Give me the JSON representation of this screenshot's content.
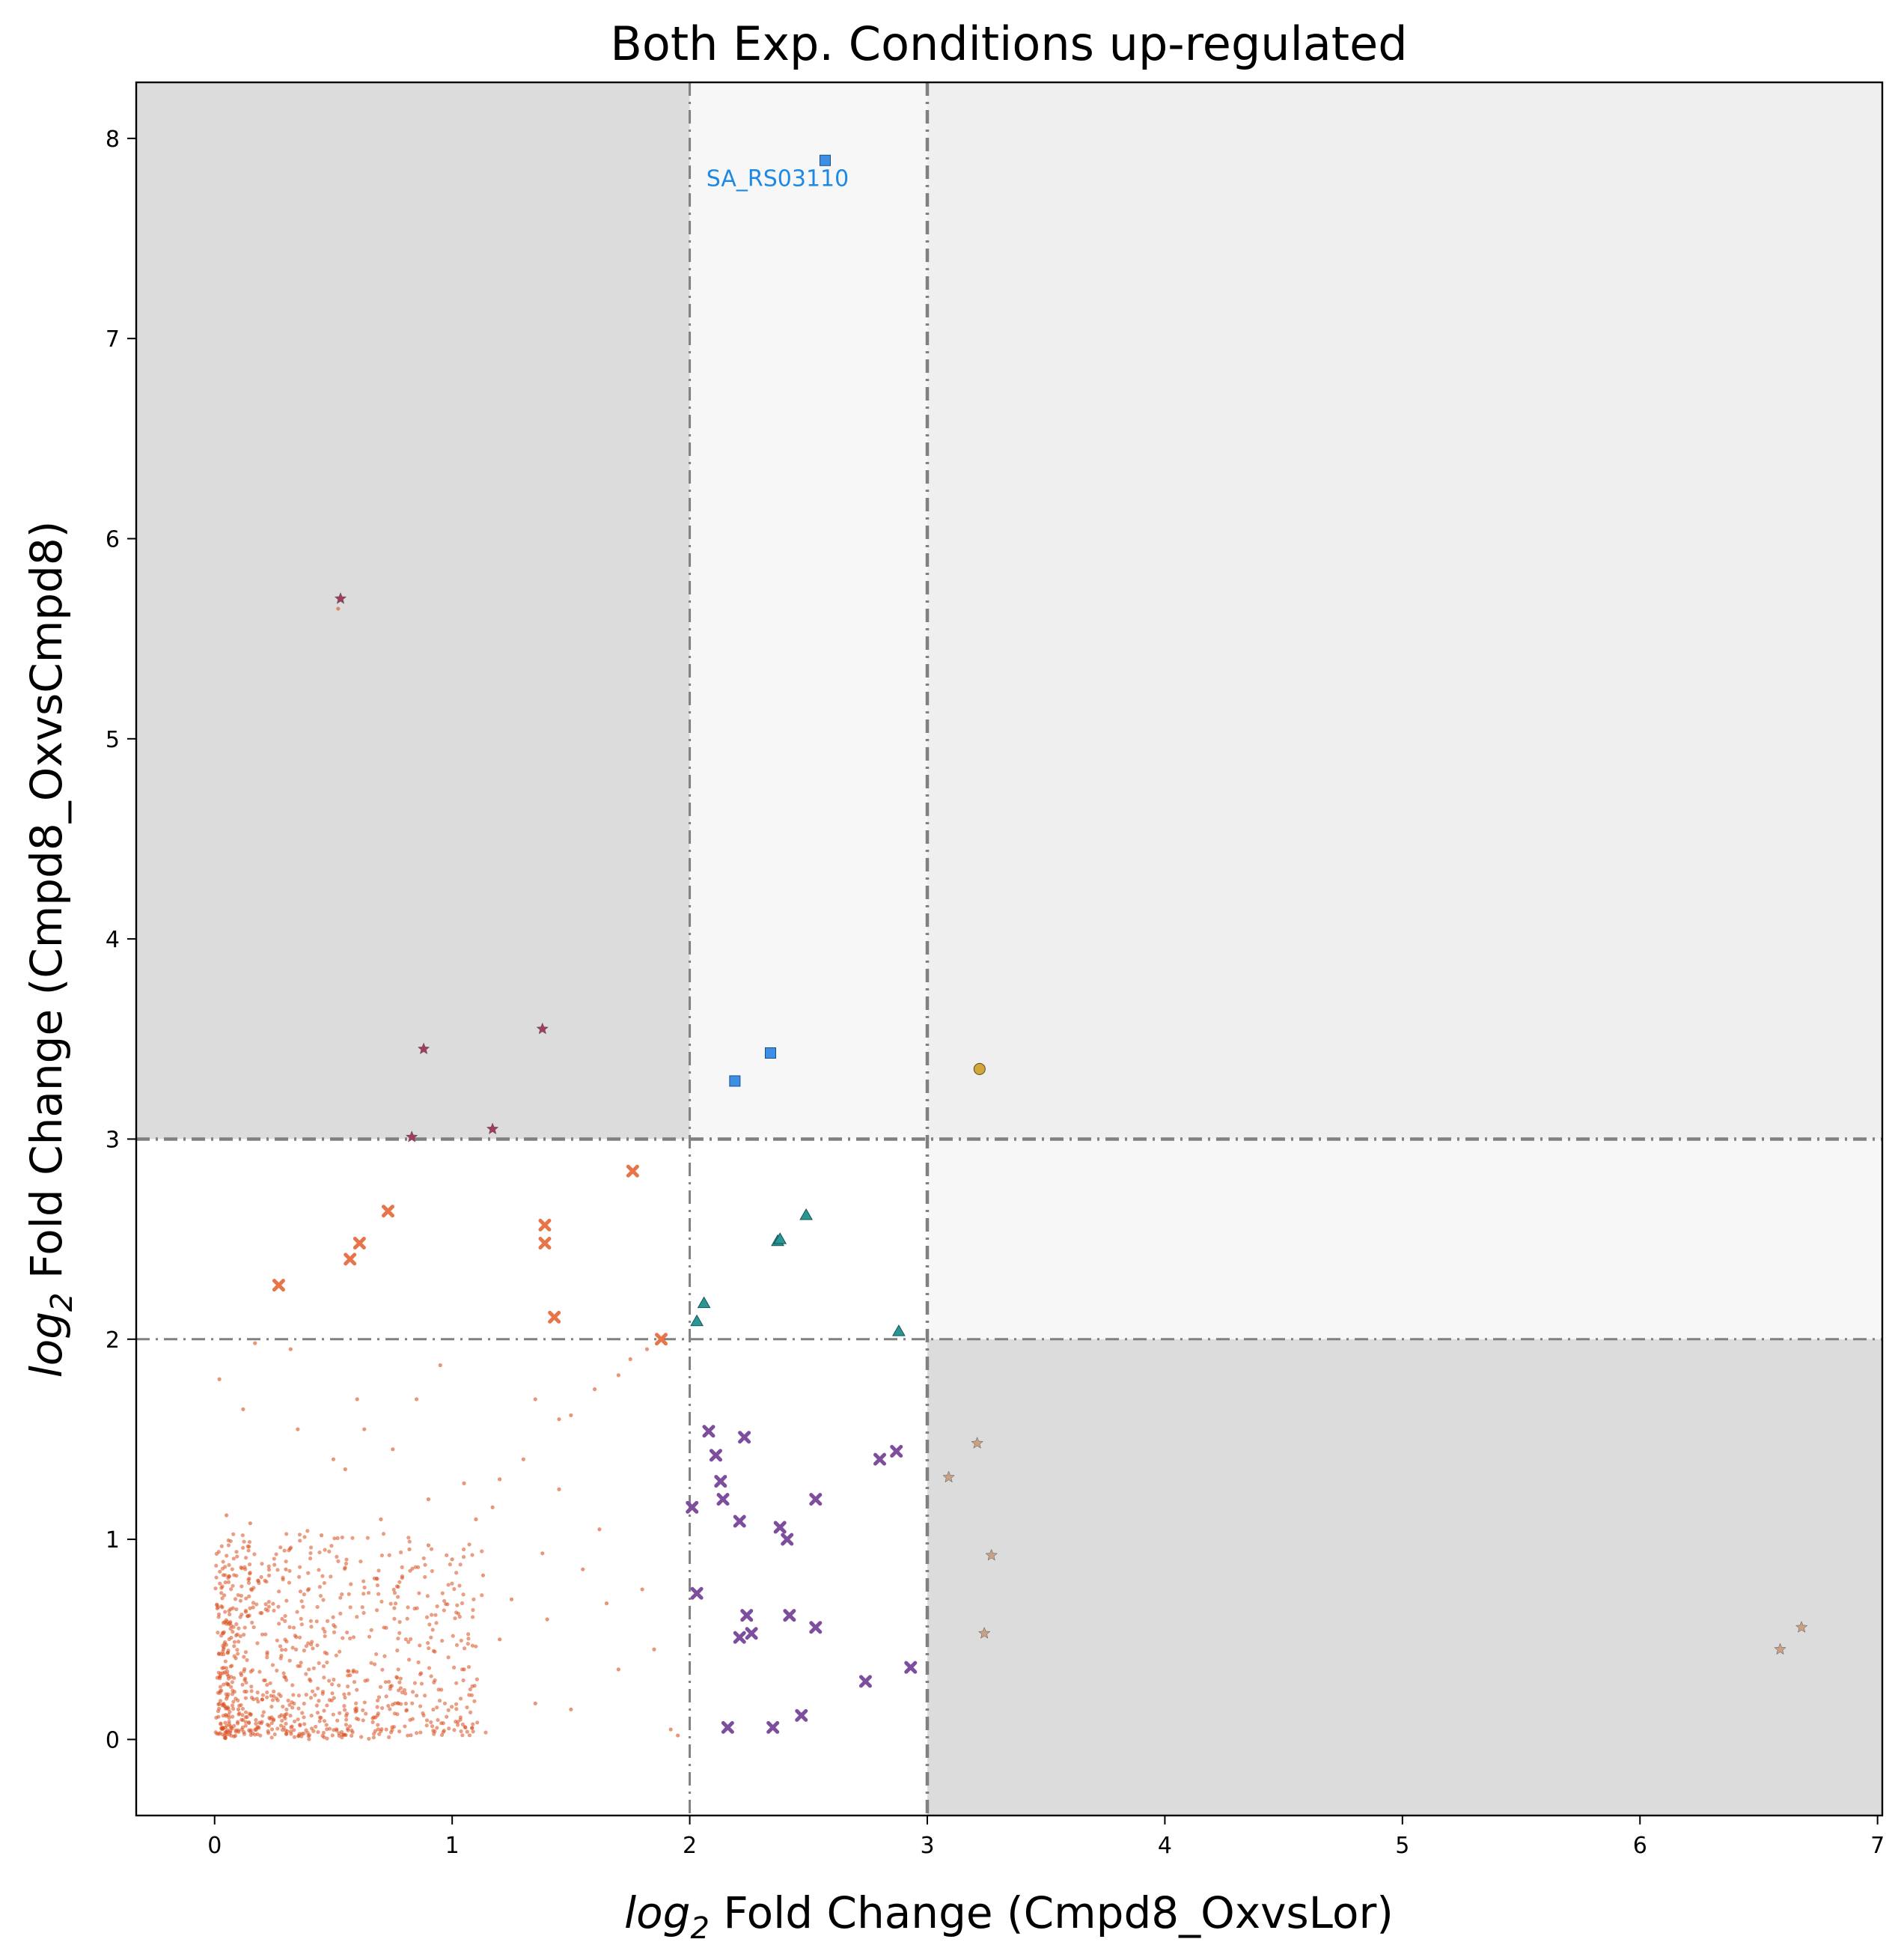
{
  "chart_data": {
    "type": "scatter",
    "title": "Both Exp. Conditions up-regulated",
    "xlabel_prefix": "log",
    "xlabel_sub": "2",
    "xlabel_rest": " Fold Change (Cmpd8_OxvsLor)",
    "ylabel_prefix": "log",
    "ylabel_sub": "2",
    "ylabel_rest": " Fold Change (Cmpd8_OxvsCmpd8)",
    "xlim": [
      -0.33,
      7.02
    ],
    "ylim": [
      -0.38,
      8.28
    ],
    "xticks": [
      "0",
      "1",
      "2",
      "3",
      "4",
      "5",
      "6",
      "7"
    ],
    "yticks": [
      "0",
      "1",
      "2",
      "3",
      "4",
      "5",
      "6",
      "7",
      "8"
    ],
    "grid": false,
    "threshold_lines": {
      "x": [
        2,
        3
      ],
      "y": [
        2,
        3
      ]
    },
    "region_shading": [
      {
        "x": [
          -0.33,
          2
        ],
        "y": [
          3,
          8.28
        ],
        "color": "#dcdcdc"
      },
      {
        "x": [
          2,
          3
        ],
        "y": [
          3,
          8.28
        ],
        "color": "#f7f7f7"
      },
      {
        "x": [
          3,
          7.02
        ],
        "y": [
          3,
          8.28
        ],
        "color": "#efefef"
      },
      {
        "x": [
          3,
          7.02
        ],
        "y": [
          2,
          3
        ],
        "color": "#f7f7f7"
      },
      {
        "x": [
          3,
          7.02
        ],
        "y": [
          -0.38,
          2
        ],
        "color": "#dcdcdc"
      }
    ],
    "annotations": [
      {
        "text": "SA_RS03110",
        "x": 2.07,
        "y": 7.8,
        "color": "#1e88e5"
      }
    ],
    "series": [
      {
        "marker": "circle-small",
        "color": "#d94e1f",
        "points": [
          [
            0.52,
            5.65
          ],
          [
            1.2,
            1.3
          ],
          [
            1.38,
            0.93
          ],
          [
            1.75,
            1.9
          ],
          [
            1.82,
            1.95
          ],
          [
            0.9,
            0.97
          ],
          [
            1.17,
            1.16
          ],
          [
            1.62,
            1.05
          ],
          [
            1.95,
            0.02
          ],
          [
            1.92,
            0.05
          ],
          [
            1.85,
            0.45
          ],
          [
            1.5,
            1.62
          ],
          [
            1.45,
            1.25
          ],
          [
            0.5,
            1.4
          ],
          [
            0.55,
            1.35
          ],
          [
            0.75,
            1.45
          ],
          [
            0.85,
            1.7
          ],
          [
            0.95,
            1.87
          ],
          [
            1.05,
            1.28
          ],
          [
            1.1,
            1.1
          ],
          [
            1.3,
            1.4
          ],
          [
            1.35,
            1.7
          ],
          [
            1.45,
            1.6
          ],
          [
            1.6,
            1.75
          ],
          [
            1.7,
            1.82
          ],
          [
            0.6,
            1.7
          ],
          [
            0.63,
            1.55
          ],
          [
            0.32,
            1.95
          ],
          [
            0.17,
            1.98
          ],
          [
            0.12,
            1.65
          ],
          [
            0.02,
            1.8
          ],
          [
            0.35,
            1.55
          ],
          [
            0.7,
            1.1
          ],
          [
            0.82,
            0.95
          ],
          [
            0.9,
            1.2
          ],
          [
            1.0,
            0.9
          ],
          [
            1.13,
            0.82
          ],
          [
            1.25,
            0.7
          ],
          [
            1.4,
            0.6
          ],
          [
            1.55,
            0.85
          ],
          [
            1.65,
            0.68
          ],
          [
            1.8,
            0.75
          ],
          [
            1.05,
            0.35
          ],
          [
            1.2,
            0.5
          ],
          [
            1.35,
            0.18
          ],
          [
            1.5,
            0.15
          ],
          [
            1.7,
            0.35
          ],
          [
            0.45,
            1.02
          ],
          [
            0.3,
            0.85
          ],
          [
            0.15,
            1.08
          ],
          [
            0.05,
            1.12
          ],
          [
            0.4,
            0.3
          ],
          [
            0.2,
            0.2
          ],
          [
            0.1,
            0.15
          ]
        ]
      },
      {
        "marker": "x",
        "color": "#e8744a",
        "points": [
          [
            0.27,
            2.27
          ],
          [
            0.57,
            2.4
          ],
          [
            0.61,
            2.48
          ],
          [
            0.73,
            2.64
          ],
          [
            1.39,
            2.57
          ],
          [
            1.39,
            2.48
          ],
          [
            1.43,
            2.11
          ],
          [
            1.76,
            2.84
          ],
          [
            1.88,
            2.0
          ]
        ]
      },
      {
        "marker": "star",
        "color": "#a23b5c",
        "points": [
          [
            0.53,
            5.7
          ],
          [
            0.88,
            3.45
          ],
          [
            1.38,
            3.55
          ],
          [
            0.83,
            3.01
          ],
          [
            1.17,
            3.05
          ]
        ]
      },
      {
        "marker": "square",
        "color": "#3d8fe6",
        "points": [
          [
            2.57,
            7.89
          ],
          [
            2.19,
            3.29
          ],
          [
            2.34,
            3.43
          ]
        ]
      },
      {
        "marker": "triangle",
        "color": "#2a9595",
        "points": [
          [
            2.49,
            2.62
          ],
          [
            2.37,
            2.49
          ],
          [
            2.38,
            2.5
          ],
          [
            2.06,
            2.18
          ],
          [
            2.03,
            2.09
          ],
          [
            2.88,
            2.04
          ]
        ]
      },
      {
        "marker": "circle",
        "color": "#d4a63a",
        "points": [
          [
            3.22,
            3.35
          ]
        ]
      },
      {
        "marker": "x",
        "color": "#7d4d9e",
        "points": [
          [
            2.08,
            1.54
          ],
          [
            2.11,
            1.42
          ],
          [
            2.13,
            1.29
          ],
          [
            2.14,
            1.2
          ],
          [
            2.23,
            1.51
          ],
          [
            2.21,
            1.09
          ],
          [
            2.01,
            1.16
          ],
          [
            2.38,
            1.06
          ],
          [
            2.41,
            1.0
          ],
          [
            2.53,
            1.2
          ],
          [
            2.8,
            1.4
          ],
          [
            2.87,
            1.44
          ],
          [
            2.03,
            0.73
          ],
          [
            2.24,
            0.62
          ],
          [
            2.21,
            0.51
          ],
          [
            2.26,
            0.53
          ],
          [
            2.42,
            0.62
          ],
          [
            2.53,
            0.56
          ],
          [
            2.74,
            0.29
          ],
          [
            2.93,
            0.36
          ],
          [
            2.16,
            0.06
          ],
          [
            2.35,
            0.06
          ],
          [
            2.47,
            0.12
          ]
        ]
      },
      {
        "marker": "star",
        "color": "#c9a184",
        "points": [
          [
            3.21,
            1.48
          ],
          [
            3.09,
            1.31
          ],
          [
            3.27,
            0.92
          ],
          [
            3.24,
            0.53
          ],
          [
            6.59,
            0.45
          ],
          [
            6.68,
            0.56
          ]
        ]
      }
    ]
  }
}
